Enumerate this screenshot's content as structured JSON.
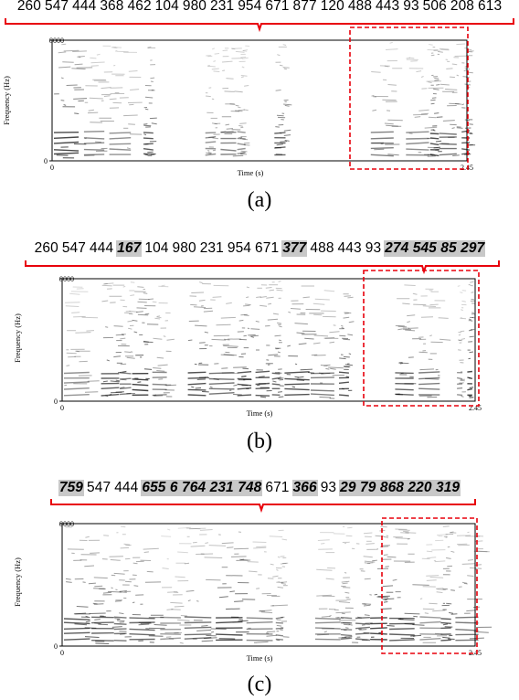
{
  "panels": [
    {
      "caption": "(a)",
      "tokens": [
        {
          "t": "260",
          "h": false
        },
        {
          "t": "547",
          "h": false
        },
        {
          "t": "444",
          "h": false
        },
        {
          "t": "368",
          "h": false
        },
        {
          "t": "462",
          "h": false
        },
        {
          "t": "104",
          "h": false
        },
        {
          "t": "980",
          "h": false
        },
        {
          "t": "231",
          "h": false
        },
        {
          "t": "954",
          "h": false
        },
        {
          "t": "671",
          "h": false
        },
        {
          "t": "877",
          "h": false
        },
        {
          "t": "120",
          "h": false
        },
        {
          "t": "488",
          "h": false
        },
        {
          "t": "443",
          "h": false
        },
        {
          "t": "93",
          "h": false
        },
        {
          "t": "506",
          "h": false
        },
        {
          "t": "208",
          "h": false
        },
        {
          "t": "613",
          "h": false
        }
      ],
      "axis": {
        "y_top": "8000",
        "y_bottom": "0",
        "x_left": "0",
        "x_right": "2.45",
        "ylabel": "Frequency (Hz)",
        "xlabel": "Time (s)"
      }
    },
    {
      "caption": "(b)",
      "tokens": [
        {
          "t": "260",
          "h": false
        },
        {
          "t": "547",
          "h": false
        },
        {
          "t": "444",
          "h": false
        },
        {
          "t": "167",
          "h": true
        },
        {
          "t": "104",
          "h": false
        },
        {
          "t": "980",
          "h": false
        },
        {
          "t": "231",
          "h": false
        },
        {
          "t": "954",
          "h": false
        },
        {
          "t": "671",
          "h": false
        },
        {
          "t": "377",
          "h": true
        },
        {
          "t": "488",
          "h": false
        },
        {
          "t": "443",
          "h": false
        },
        {
          "t": "93",
          "h": false
        },
        {
          "t": "274 545 85 297",
          "h": true
        }
      ],
      "axis": {
        "y_top": "8000",
        "y_bottom": "0",
        "x_left": "0",
        "x_right": "2.45",
        "ylabel": "Frequency (Hz)",
        "xlabel": "Time (s)"
      }
    },
    {
      "caption": "(c)",
      "tokens": [
        {
          "t": "759",
          "h": true
        },
        {
          "t": "547",
          "h": false
        },
        {
          "t": "444",
          "h": false
        },
        {
          "t": "655 6 764 231 748",
          "h": true
        },
        {
          "t": "671",
          "h": false
        },
        {
          "t": "366",
          "h": true
        },
        {
          "t": "93",
          "h": false
        },
        {
          "t": "29 79 868 220 319",
          "h": true
        }
      ],
      "axis": {
        "y_top": "8000",
        "y_bottom": "0",
        "x_left": "0",
        "x_right": "2.45",
        "ylabel": "Frequency (Hz)",
        "xlabel": "Time (s)"
      }
    }
  ]
}
